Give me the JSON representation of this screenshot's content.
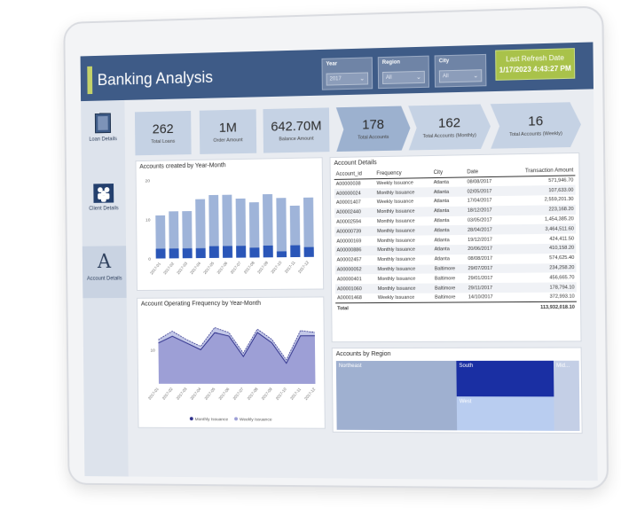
{
  "header": {
    "title": "Banking Analysis",
    "slicers": [
      {
        "label": "Year",
        "value": "2017"
      },
      {
        "label": "Region",
        "value": "All"
      },
      {
        "label": "City",
        "value": "All"
      }
    ],
    "refresh_label": "Last Refresh Date",
    "refresh_value": "1/17/2023 4:43:27 PM"
  },
  "nav": [
    {
      "label": "Loan Details",
      "icon": "document-icon"
    },
    {
      "label": "Client Details",
      "icon": "people-icon"
    },
    {
      "label": "Account Details",
      "icon": "letter-a-icon"
    }
  ],
  "kpis": [
    {
      "value": "262",
      "caption": "Total Loans"
    },
    {
      "value": "1M",
      "caption": "Order Amount"
    },
    {
      "value": "642.70M",
      "caption": "Balance Amount"
    },
    {
      "value": "178",
      "caption": "Total Accounts"
    },
    {
      "value": "162",
      "caption": "Total Accounts (Monthly)"
    },
    {
      "value": "16",
      "caption": "Total Accounts (Weekly)"
    }
  ],
  "accounts_chart": {
    "title": "Accounts created by Year-Month",
    "colors": {
      "total": "#9fb4d9",
      "dark": "#2a56b8"
    }
  },
  "frequency_chart": {
    "title": "Account Operating Frequency by Year-Month",
    "colors": {
      "monthly": "#9d9fd6",
      "weekly": "#c3c8e8",
      "line": "#2d2f8a"
    }
  },
  "table": {
    "title": "Account Details",
    "columns": [
      "Account_id",
      "Frequency",
      "City",
      "Date",
      "Transaction Amount"
    ],
    "rows": [
      [
        "A00000038",
        "Weekly Issuance",
        "Atlanta",
        "08/08/2017",
        "571,946.70"
      ],
      [
        "A00000024",
        "Monthly Issuance",
        "Atlanta",
        "02/05/2017",
        "107,633.00"
      ],
      [
        "A00001407",
        "Weekly Issuance",
        "Atlanta",
        "17/04/2017",
        "2,559,201.30"
      ],
      [
        "A00002440",
        "Monthly Issuance",
        "Atlanta",
        "18/12/2017",
        "223,168.20"
      ],
      [
        "A00002594",
        "Monthly Issuance",
        "Atlanta",
        "03/05/2017",
        "1,454,385.20"
      ],
      [
        "A00000739",
        "Monthly Issuance",
        "Atlanta",
        "28/04/2017",
        "3,464,511.60"
      ],
      [
        "A00000169",
        "Monthly Issuance",
        "Atlanta",
        "19/12/2017",
        "424,411.50"
      ],
      [
        "A00000886",
        "Monthly Issuance",
        "Atlanta",
        "20/06/2017",
        "410,158.20"
      ],
      [
        "A00002457",
        "Monthly Issuance",
        "Atlanta",
        "08/08/2017",
        "574,625.40"
      ],
      [
        "A00000052",
        "Monthly Issuance",
        "Baltimore",
        "29/07/2017",
        "234,258.20"
      ],
      [
        "A00000401",
        "Monthly Issuance",
        "Baltimore",
        "29/01/2017",
        "456,665.70"
      ],
      [
        "A00001060",
        "Monthly Issuance",
        "Baltimore",
        "29/11/2017",
        "178,794.10"
      ],
      [
        "A00001468",
        "Weekly Issuance",
        "Baltimore",
        "14/10/2017",
        "372,993.10"
      ]
    ],
    "total_label": "Total",
    "total_value": "113,932,018.10"
  },
  "treemap": {
    "title": "Accounts by Region",
    "tiles": [
      {
        "label": "Northeast",
        "color": "#9fb0d0"
      },
      {
        "label": "South",
        "color": "#1a2fa3"
      },
      {
        "label": "West",
        "color": "#b9cdf0"
      },
      {
        "label": "Mid...",
        "color": "#c4cfe6"
      }
    ]
  },
  "chart_data": [
    {
      "type": "bar",
      "title": "Accounts created by Year-Month",
      "categories": [
        "2017-01",
        "2017-02",
        "2017-03",
        "2017-04",
        "2017-05",
        "2017-06",
        "2017-07",
        "2017-08",
        "2017-09",
        "2017-10",
        "2017-11",
        "2017-12"
      ],
      "ylim": [
        0,
        20
      ],
      "yticks": [
        "0",
        "10",
        "20"
      ],
      "series": [
        {
          "values": [
            11,
            12,
            12,
            15,
            16,
            16,
            15,
            14,
            16,
            15,
            13,
            15
          ]
        },
        {
          "values": [
            2.5,
            2.5,
            2.5,
            2.5,
            3,
            3,
            3,
            2.5,
            3,
            1.5,
            3,
            2.5
          ]
        }
      ]
    },
    {
      "type": "area",
      "title": "Account Operating Frequency by Year-Month",
      "categories": [
        "2017-01",
        "2017-02",
        "2017-03",
        "2017-04",
        "2017-05",
        "2017-06",
        "2017-07",
        "2017-08",
        "2017-09",
        "2017-10",
        "2017-11",
        "2017-12"
      ],
      "ylim": [
        0,
        20
      ],
      "yticks": [
        "10"
      ],
      "series": [
        {
          "name": "Monthly Issuance",
          "values": [
            12,
            14,
            12,
            10,
            15,
            14,
            8,
            15,
            12,
            6,
            14,
            14
          ]
        },
        {
          "name": "Weekly Issuance",
          "values": [
            1,
            1.5,
            1,
            1,
            1.5,
            1,
            1,
            1,
            1,
            1,
            1.5,
            1
          ]
        }
      ]
    }
  ]
}
